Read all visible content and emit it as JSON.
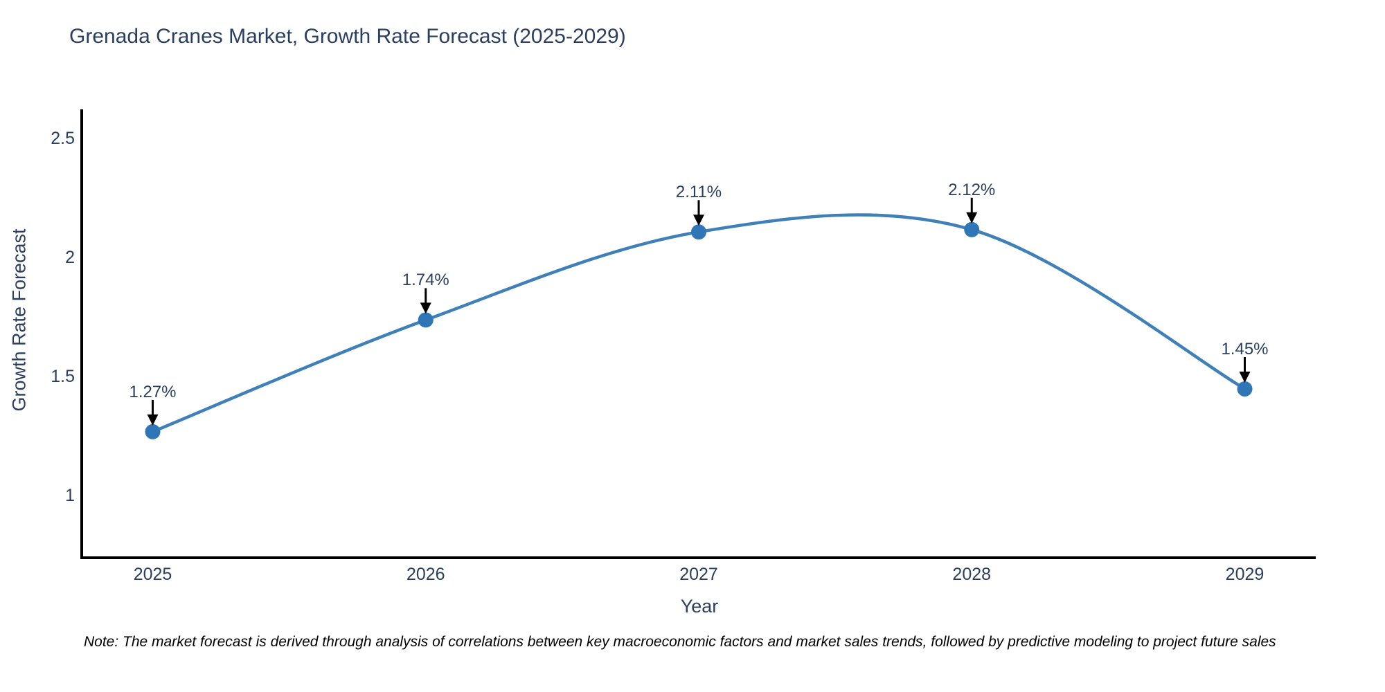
{
  "chart_data": {
    "type": "line",
    "title": "Grenada Cranes Market, Growth Rate Forecast (2025-2029)",
    "xlabel": "Year",
    "ylabel": "Growth Rate Forecast",
    "x": [
      2025,
      2026,
      2027,
      2028,
      2029
    ],
    "series": [
      {
        "name": "Growth Rate Forecast",
        "values": [
          1.27,
          1.74,
          2.11,
          2.12,
          1.45
        ]
      }
    ],
    "point_labels": [
      "1.27%",
      "1.74%",
      "2.11%",
      "2.12%",
      "1.45%"
    ],
    "xticks": [
      "2025",
      "2026",
      "2027",
      "2028",
      "2029"
    ],
    "yticks": [
      1,
      1.5,
      2,
      2.5
    ],
    "xlim": [
      2024.74,
      2029.26
    ],
    "ylim": [
      0.74,
      2.62
    ],
    "grid": false,
    "legend_position": "none",
    "line_shape": "spline",
    "colors": {
      "line": "#3f80b8",
      "marker": "#2e76b5",
      "arrow": "#000000",
      "axis": "#000000",
      "text": "#2a3f5f"
    }
  },
  "note": {
    "text": "Note: The market forecast is derived through analysis of correlations between key macroeconomic factors and market sales trends, followed by predictive modeling to project future sales"
  }
}
